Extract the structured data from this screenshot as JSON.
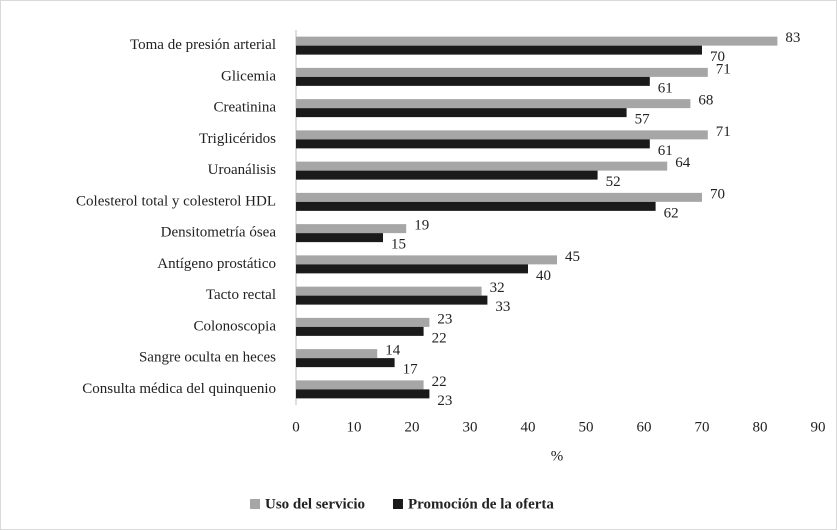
{
  "chart_data": {
    "type": "bar",
    "orientation": "horizontal",
    "x_label": "%",
    "categories": [
      "Toma de presión arterial",
      "Glicemia",
      "Creatinina",
      "Triglicéridos",
      "Uroanálisis",
      "Colesterol total y colesterol HDL",
      "Densitometría ósea",
      "Antígeno prostático",
      "Tacto rectal",
      "Colonoscopia",
      "Sangre oculta en heces",
      "Consulta médica del quinquenio"
    ],
    "series": [
      {
        "name": "Uso del servicio",
        "color": "#a6a6a6",
        "values": [
          83,
          71,
          68,
          71,
          64,
          70,
          19,
          45,
          32,
          23,
          14,
          22
        ]
      },
      {
        "name": "Promoción de la oferta",
        "color": "#1a1a1a",
        "values": [
          70,
          61,
          57,
          61,
          52,
          62,
          15,
          40,
          33,
          22,
          17,
          23
        ]
      }
    ],
    "xlim": [
      0,
      90
    ],
    "xticks": [
      0,
      10,
      20,
      30,
      40,
      50,
      60,
      70,
      80,
      90
    ],
    "grid": false,
    "legend": "bottom"
  }
}
